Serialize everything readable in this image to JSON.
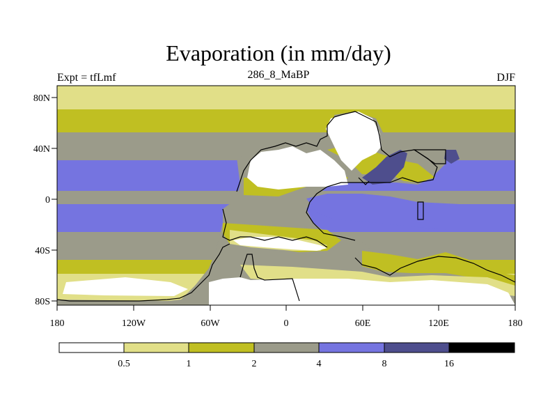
{
  "figure": {
    "title": "Evaporation (in mm/day)",
    "left_subtitle": "Expt = tfLmf",
    "center_subtitle": "286_8_MaBP",
    "right_subtitle": "DJF"
  },
  "axes": {
    "x_ticks": [
      "180",
      "120W",
      "60W",
      "0",
      "60E",
      "120E",
      "180"
    ],
    "x_tick_values": [
      -180,
      -120,
      -60,
      0,
      60,
      120,
      180
    ],
    "y_ticks": [
      "80N",
      "40N",
      "0",
      "40S",
      "80S"
    ],
    "y_tick_values": [
      80,
      40,
      0,
      -40,
      -80
    ],
    "lon_range": [
      -180,
      180
    ],
    "lat_range": [
      -90,
      90
    ]
  },
  "colorbar": {
    "labels": [
      "0.5",
      "1",
      "2",
      "4",
      "8",
      "16"
    ],
    "colors": [
      "#ffffff",
      "#e1df88",
      "#c0bf22",
      "#9b9b8a",
      "#7574e0",
      "#4e4e8d",
      "#000000"
    ]
  },
  "colors": {
    "c0": "#ffffff",
    "c1": "#e1df88",
    "c2": "#c0bf22",
    "c3": "#9b9b8a",
    "c4": "#7574e0",
    "c5": "#4e4e8d",
    "c6": "#000000"
  }
}
